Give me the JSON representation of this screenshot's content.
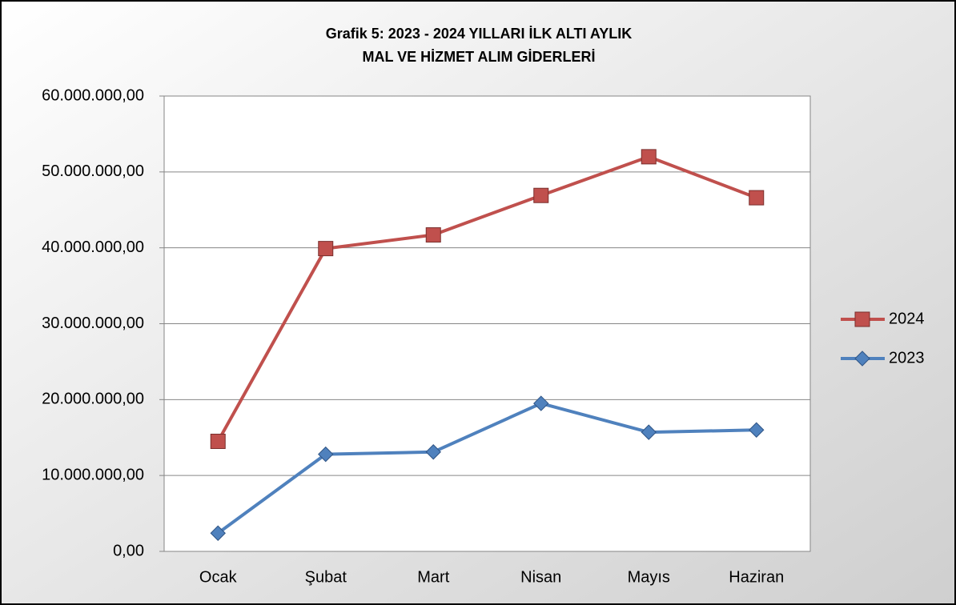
{
  "chart_data": {
    "type": "line",
    "title": [
      "Grafik 5: 2023 - 2024 YILLARI İLK ALTI AYLIK",
      "MAL VE HİZMET ALIM GİDERLERİ"
    ],
    "categories": [
      "Ocak",
      "Şubat",
      "Mart",
      "Nisan",
      "Mayıs",
      "Haziran"
    ],
    "series": [
      {
        "name": "2024",
        "color": "#c0504d",
        "marker": "square",
        "values": [
          14500000,
          39900000,
          41700000,
          46900000,
          52000000,
          46600000
        ]
      },
      {
        "name": "2023",
        "color": "#4f81bd",
        "marker": "diamond",
        "values": [
          2400000,
          12800000,
          13100000,
          19500000,
          15700000,
          16000000
        ]
      }
    ],
    "ylim": [
      0,
      60000000
    ],
    "yticks": [
      {
        "value": 0,
        "label": "0,00"
      },
      {
        "value": 10000000,
        "label": "10.000.000,00"
      },
      {
        "value": 20000000,
        "label": "20.000.000,00"
      },
      {
        "value": 30000000,
        "label": "30.000.000,00"
      },
      {
        "value": 40000000,
        "label": "40.000.000,00"
      },
      {
        "value": 50000000,
        "label": "50.000.000,00"
      },
      {
        "value": 60000000,
        "label": "60.000.000,00"
      }
    ],
    "grid": true,
    "legend": "right"
  }
}
